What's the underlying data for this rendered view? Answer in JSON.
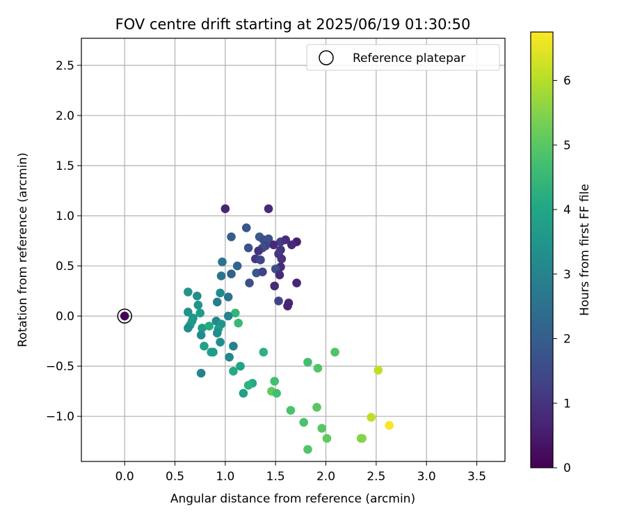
{
  "chart_data": {
    "type": "scatter",
    "title": "FOV centre drift starting at 2025/06/19 01:30:50",
    "xlabel": "Angular distance from reference (arcmin)",
    "ylabel": "Rotation from reference (arcmin)",
    "xlim": [
      -0.43,
      3.78
    ],
    "ylim": [
      -1.45,
      2.77
    ],
    "xticks": [
      0.0,
      0.5,
      1.0,
      1.5,
      2.0,
      2.5,
      3.0,
      3.5
    ],
    "xtick_labels": [
      "0.0",
      "0.5",
      "1.0",
      "1.5",
      "2.0",
      "2.5",
      "3.0",
      "3.5"
    ],
    "yticks": [
      -1.0,
      -0.5,
      0.0,
      0.5,
      1.0,
      1.5,
      2.0,
      2.5
    ],
    "ytick_labels": [
      "−1.0",
      "−0.5",
      "0.0",
      "0.5",
      "1.0",
      "1.5",
      "2.0",
      "2.5"
    ],
    "grid": true,
    "legend": {
      "placement": "top-right",
      "entries": [
        "Reference platepar"
      ]
    },
    "reference_point": {
      "x": 0.0,
      "y": 0.0,
      "hours": 0.0
    },
    "colorbar": {
      "label": "Hours from first FF file",
      "colormap": "viridis",
      "range": [
        0,
        6.75
      ],
      "ticks": [
        0,
        1,
        2,
        3,
        4,
        5,
        6
      ],
      "tick_labels": [
        "0",
        "1",
        "2",
        "3",
        "4",
        "5",
        "6"
      ]
    },
    "points": [
      {
        "x": 1.0,
        "y": 1.07,
        "hours": 0.7
      },
      {
        "x": 1.43,
        "y": 1.07,
        "hours": 0.8
      },
      {
        "x": 1.21,
        "y": 0.88,
        "hours": 1.8
      },
      {
        "x": 1.06,
        "y": 0.79,
        "hours": 2.0
      },
      {
        "x": 1.34,
        "y": 0.79,
        "hours": 1.9
      },
      {
        "x": 1.38,
        "y": 0.76,
        "hours": 1.6
      },
      {
        "x": 1.43,
        "y": 0.77,
        "hours": 1.7
      },
      {
        "x": 1.55,
        "y": 0.74,
        "hours": 1.2
      },
      {
        "x": 1.6,
        "y": 0.76,
        "hours": 0.9
      },
      {
        "x": 1.71,
        "y": 0.74,
        "hours": 0.6
      },
      {
        "x": 1.66,
        "y": 0.71,
        "hours": 0.8
      },
      {
        "x": 1.48,
        "y": 0.71,
        "hours": 0.8
      },
      {
        "x": 1.4,
        "y": 0.7,
        "hours": 1.3
      },
      {
        "x": 1.37,
        "y": 0.68,
        "hours": 1.6
      },
      {
        "x": 1.33,
        "y": 0.65,
        "hours": 1.0
      },
      {
        "x": 1.23,
        "y": 0.68,
        "hours": 1.7
      },
      {
        "x": 1.55,
        "y": 0.66,
        "hours": 1.0
      },
      {
        "x": 1.53,
        "y": 0.62,
        "hours": 1.1
      },
      {
        "x": 1.3,
        "y": 0.57,
        "hours": 1.1
      },
      {
        "x": 1.35,
        "y": 0.56,
        "hours": 1.4
      },
      {
        "x": 1.56,
        "y": 0.57,
        "hours": 1.0
      },
      {
        "x": 0.97,
        "y": 0.54,
        "hours": 2.6
      },
      {
        "x": 1.12,
        "y": 0.5,
        "hours": 2.2
      },
      {
        "x": 1.55,
        "y": 0.49,
        "hours": 0.8
      },
      {
        "x": 1.5,
        "y": 0.47,
        "hours": 1.6
      },
      {
        "x": 1.31,
        "y": 0.43,
        "hours": 1.9
      },
      {
        "x": 1.37,
        "y": 0.44,
        "hours": 1.3
      },
      {
        "x": 1.06,
        "y": 0.42,
        "hours": 2.1
      },
      {
        "x": 1.54,
        "y": 0.41,
        "hours": 0.8
      },
      {
        "x": 0.96,
        "y": 0.4,
        "hours": 2.6
      },
      {
        "x": 1.24,
        "y": 0.33,
        "hours": 1.6
      },
      {
        "x": 1.71,
        "y": 0.33,
        "hours": 0.7
      },
      {
        "x": 1.49,
        "y": 0.3,
        "hours": 0.8
      },
      {
        "x": 0.63,
        "y": 0.24,
        "hours": 3.5
      },
      {
        "x": 0.95,
        "y": 0.23,
        "hours": 3.2
      },
      {
        "x": 0.72,
        "y": 0.2,
        "hours": 3.3
      },
      {
        "x": 1.03,
        "y": 0.19,
        "hours": 2.6
      },
      {
        "x": 0.92,
        "y": 0.14,
        "hours": 2.8
      },
      {
        "x": 1.53,
        "y": 0.15,
        "hours": 1.3
      },
      {
        "x": 1.63,
        "y": 0.13,
        "hours": 0.8
      },
      {
        "x": 1.62,
        "y": 0.1,
        "hours": 0.7
      },
      {
        "x": 0.73,
        "y": 0.11,
        "hours": 3.5
      },
      {
        "x": 0.63,
        "y": 0.04,
        "hours": 3.4
      },
      {
        "x": 0.75,
        "y": 0.03,
        "hours": 3.7
      },
      {
        "x": 1.1,
        "y": 0.03,
        "hours": 4.4
      },
      {
        "x": 1.03,
        "y": 0.0,
        "hours": 3.0
      },
      {
        "x": 0.68,
        "y": -0.02,
        "hours": 3.5
      },
      {
        "x": 0.67,
        "y": -0.05,
        "hours": 3.6
      },
      {
        "x": 0.91,
        "y": -0.05,
        "hours": 3.1
      },
      {
        "x": 0.96,
        "y": -0.08,
        "hours": 3.5
      },
      {
        "x": 1.13,
        "y": -0.07,
        "hours": 4.5
      },
      {
        "x": 0.65,
        "y": -0.09,
        "hours": 3.6
      },
      {
        "x": 0.63,
        "y": -0.12,
        "hours": 3.3
      },
      {
        "x": 0.77,
        "y": -0.12,
        "hours": 3.7
      },
      {
        "x": 0.84,
        "y": -0.1,
        "hours": 4.1
      },
      {
        "x": 0.93,
        "y": -0.13,
        "hours": 3.7
      },
      {
        "x": 0.92,
        "y": -0.17,
        "hours": 3.3
      },
      {
        "x": 0.76,
        "y": -0.19,
        "hours": 3.2
      },
      {
        "x": 0.95,
        "y": -0.26,
        "hours": 3.3
      },
      {
        "x": 0.79,
        "y": -0.3,
        "hours": 3.8
      },
      {
        "x": 1.08,
        "y": -0.3,
        "hours": 3.0
      },
      {
        "x": 0.86,
        "y": -0.36,
        "hours": 3.9
      },
      {
        "x": 0.88,
        "y": -0.36,
        "hours": 3.7
      },
      {
        "x": 1.38,
        "y": -0.36,
        "hours": 4.3
      },
      {
        "x": 1.04,
        "y": -0.41,
        "hours": 3.1
      },
      {
        "x": 1.15,
        "y": -0.5,
        "hours": 3.9
      },
      {
        "x": 1.08,
        "y": -0.55,
        "hours": 4.1
      },
      {
        "x": 0.76,
        "y": -0.57,
        "hours": 3.0
      },
      {
        "x": 1.27,
        "y": -0.67,
        "hours": 4.1
      },
      {
        "x": 1.23,
        "y": -0.69,
        "hours": 4.3
      },
      {
        "x": 1.18,
        "y": -0.77,
        "hours": 3.8
      },
      {
        "x": 1.49,
        "y": -0.65,
        "hours": 4.7
      },
      {
        "x": 1.46,
        "y": -0.75,
        "hours": 5.1
      },
      {
        "x": 1.51,
        "y": -0.77,
        "hours": 4.7
      },
      {
        "x": 1.82,
        "y": -0.46,
        "hours": 4.7
      },
      {
        "x": 1.92,
        "y": -0.52,
        "hours": 4.9
      },
      {
        "x": 2.09,
        "y": -0.36,
        "hours": 4.9
      },
      {
        "x": 2.52,
        "y": -0.54,
        "hours": 6.1
      },
      {
        "x": 1.65,
        "y": -0.94,
        "hours": 4.8
      },
      {
        "x": 1.91,
        "y": -0.91,
        "hours": 5.0
      },
      {
        "x": 1.78,
        "y": -1.06,
        "hours": 4.8
      },
      {
        "x": 1.96,
        "y": -1.12,
        "hours": 5.0
      },
      {
        "x": 2.01,
        "y": -1.22,
        "hours": 5.1
      },
      {
        "x": 1.82,
        "y": -1.33,
        "hours": 4.9
      },
      {
        "x": 2.35,
        "y": -1.22,
        "hours": 5.4
      },
      {
        "x": 2.36,
        "y": -1.22,
        "hours": 5.5
      },
      {
        "x": 2.45,
        "y": -1.01,
        "hours": 6.1
      },
      {
        "x": 2.63,
        "y": -1.09,
        "hours": 6.7
      }
    ]
  }
}
